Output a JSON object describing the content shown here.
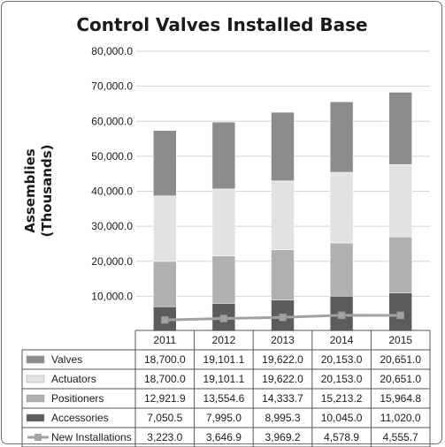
{
  "chart_data": {
    "type": "bar",
    "title": "Control Valves Installed Base",
    "ylabel": "Assemblies (Thousands)",
    "ylabel_lines": [
      "Assemblies",
      "(Thousands)"
    ],
    "ylim": [
      0,
      80000
    ],
    "yticks": [
      10000,
      20000,
      30000,
      40000,
      50000,
      60000,
      70000,
      80000
    ],
    "ytick_labels": [
      "10,000.0",
      "20,000.0",
      "30,000.0",
      "40,000.0",
      "50,000.0",
      "60,000.0",
      "70,000.0",
      "80,000.0"
    ],
    "grid": true,
    "legend": "table",
    "categories": [
      "2011",
      "2012",
      "2013",
      "2014",
      "2015"
    ],
    "series": [
      {
        "name": "Valves",
        "kind": "bar",
        "color": "#8c8c8c",
        "values": [
          18700.0,
          19101.1,
          19622.0,
          20153.0,
          20651.0
        ],
        "labels": [
          "18,700.0",
          "19,101.1",
          "19,622.0",
          "20,153.0",
          "20,651.0"
        ]
      },
      {
        "name": "Actuators",
        "kind": "bar",
        "color": "#e2e2e2",
        "values": [
          18700.0,
          19101.1,
          19622.0,
          20153.0,
          20651.0
        ],
        "labels": [
          "18,700.0",
          "19,101.1",
          "19,622.0",
          "20,153.0",
          "20,651.0"
        ]
      },
      {
        "name": "Positioners",
        "kind": "bar",
        "color": "#b0b0b0",
        "values": [
          12921.9,
          13554.6,
          14333.7,
          15213.2,
          15964.8
        ],
        "labels": [
          "12,921.9",
          "13,554.6",
          "14,333.7",
          "15,213.2",
          "15,964.8"
        ]
      },
      {
        "name": "Accessories",
        "kind": "bar",
        "color": "#5c5c5c",
        "values": [
          7050.5,
          7995.0,
          8995.3,
          10045.0,
          11020.0
        ],
        "labels": [
          "7,050.5",
          "7,995.0",
          "8,995.3",
          "10,045.0",
          "11,020.0"
        ]
      },
      {
        "name": "New Installations",
        "kind": "line",
        "color": "#a2a2a2",
        "values": [
          3223.0,
          3646.9,
          3969.2,
          4578.9,
          4555.7
        ],
        "labels": [
          "3,223.0",
          "3,646.9",
          "3,969.2",
          "4,578.9",
          "4,555.7"
        ]
      }
    ]
  }
}
